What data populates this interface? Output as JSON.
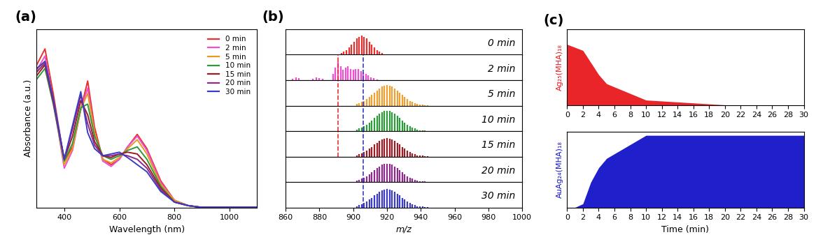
{
  "chart_data": [
    {
      "type": "line",
      "title": "(a)",
      "x_label": "Wavelength (nm)",
      "y_label": "Absorbance (a.u.)",
      "x": [
        300,
        330,
        360,
        400,
        430,
        460,
        485,
        510,
        540,
        570,
        600,
        630,
        665,
        700,
        750,
        800,
        850,
        900,
        1000,
        1100
      ],
      "series": [
        {
          "name": "0 min",
          "color": "#e8302e",
          "values": [
            0.8,
            0.89,
            0.64,
            0.26,
            0.34,
            0.55,
            0.71,
            0.45,
            0.27,
            0.24,
            0.27,
            0.34,
            0.41,
            0.33,
            0.15,
            0.04,
            0.01,
            0,
            0,
            0
          ]
        },
        {
          "name": "2 min",
          "color": "#ee4fd3",
          "values": [
            0.77,
            0.85,
            0.6,
            0.22,
            0.32,
            0.55,
            0.67,
            0.42,
            0.26,
            0.23,
            0.27,
            0.34,
            0.4,
            0.32,
            0.14,
            0.04,
            0.01,
            0,
            0,
            0
          ]
        },
        {
          "name": "5 min",
          "color": "#e69a1f",
          "values": [
            0.76,
            0.82,
            0.6,
            0.24,
            0.33,
            0.55,
            0.64,
            0.42,
            0.27,
            0.25,
            0.28,
            0.33,
            0.38,
            0.3,
            0.13,
            0.04,
            0.01,
            0,
            0,
            0
          ]
        },
        {
          "name": "10 min",
          "color": "#2e9b3a",
          "values": [
            0.72,
            0.78,
            0.58,
            0.26,
            0.36,
            0.56,
            0.58,
            0.4,
            0.29,
            0.27,
            0.29,
            0.32,
            0.34,
            0.27,
            0.12,
            0.03,
            0.01,
            0,
            0,
            0
          ]
        },
        {
          "name": "15 min",
          "color": "#9b1c24",
          "values": [
            0.74,
            0.8,
            0.59,
            0.27,
            0.4,
            0.6,
            0.52,
            0.37,
            0.29,
            0.28,
            0.3,
            0.31,
            0.3,
            0.24,
            0.11,
            0.03,
            0.01,
            0,
            0,
            0
          ]
        },
        {
          "name": "20 min",
          "color": "#8b2a8b",
          "values": [
            0.76,
            0.81,
            0.6,
            0.27,
            0.44,
            0.63,
            0.47,
            0.35,
            0.29,
            0.29,
            0.3,
            0.29,
            0.27,
            0.22,
            0.1,
            0.03,
            0.01,
            0,
            0,
            0
          ]
        },
        {
          "name": "30 min",
          "color": "#3b3bc4",
          "values": [
            0.78,
            0.82,
            0.61,
            0.27,
            0.46,
            0.65,
            0.42,
            0.33,
            0.29,
            0.3,
            0.31,
            0.28,
            0.24,
            0.2,
            0.09,
            0.03,
            0.01,
            0,
            0,
            0
          ]
        }
      ],
      "xlim": [
        300,
        1100
      ],
      "xticks": [
        400,
        600,
        800,
        1000
      ],
      "ylim": [
        0,
        1.0
      ],
      "tick_labels": "x",
      "legend": "upper right"
    },
    {
      "type": "stem",
      "title": "(b)",
      "x_label": "m/z",
      "series": [
        {
          "name": "0 min",
          "color": "#e8302e",
          "x": [
            893,
            894.5,
            896,
            897.5,
            899,
            900.5,
            902,
            903.5,
            905,
            906.5,
            908,
            909.5,
            911,
            912.5,
            914,
            915.5,
            917
          ],
          "values": [
            0.06,
            0.11,
            0.19,
            0.3,
            0.41,
            0.52,
            0.64,
            0.71,
            0.75,
            0.71,
            0.64,
            0.52,
            0.41,
            0.3,
            0.19,
            0.11,
            0.06
          ]
        },
        {
          "name": "2 min",
          "color": "#ee4fd3",
          "x": [
            864,
            866,
            868,
            876,
            878,
            880,
            882,
            888,
            889.5,
            891,
            892.5,
            894,
            895.5,
            897,
            898.5,
            900,
            901.5,
            903,
            904.5,
            906,
            907.5,
            909,
            910.5,
            912,
            914
          ],
          "values": [
            0.06,
            0.1,
            0.07,
            0.05,
            0.1,
            0.08,
            0.05,
            0.25,
            0.5,
            0.75,
            0.55,
            0.4,
            0.5,
            0.55,
            0.45,
            0.4,
            0.45,
            0.45,
            0.35,
            0.3,
            0.25,
            0.2,
            0.12,
            0.08,
            0.04
          ]
        },
        {
          "name": "5 min",
          "color": "#f0a030",
          "x": [
            902,
            903.5,
            905,
            906.5,
            908,
            909.5,
            911,
            912.5,
            914,
            915.5,
            917,
            918.5,
            920,
            921.5,
            923,
            924.5,
            926,
            927.5,
            929,
            930.5,
            932,
            933.5,
            935,
            936.5,
            938,
            939.5,
            941,
            942.5,
            944
          ],
          "values": [
            0.06,
            0.1,
            0.14,
            0.19,
            0.26,
            0.34,
            0.42,
            0.52,
            0.6,
            0.68,
            0.75,
            0.79,
            0.8,
            0.79,
            0.75,
            0.68,
            0.6,
            0.52,
            0.42,
            0.34,
            0.26,
            0.19,
            0.14,
            0.1,
            0.06,
            0.04,
            0.03,
            0.02,
            0.01
          ]
        },
        {
          "name": "10 min",
          "color": "#2e9b3a",
          "x": [
            902,
            903.5,
            905,
            906.5,
            908,
            909.5,
            911,
            912.5,
            914,
            915.5,
            917,
            918.5,
            920,
            921.5,
            923,
            924.5,
            926,
            927.5,
            929,
            930.5,
            932,
            933.5,
            935,
            936.5,
            938,
            939.5,
            941,
            942.5,
            944
          ],
          "values": [
            0.06,
            0.1,
            0.14,
            0.19,
            0.26,
            0.34,
            0.42,
            0.52,
            0.6,
            0.68,
            0.75,
            0.79,
            0.8,
            0.79,
            0.75,
            0.68,
            0.6,
            0.52,
            0.42,
            0.34,
            0.26,
            0.19,
            0.14,
            0.1,
            0.06,
            0.04,
            0.03,
            0.02,
            0.01
          ]
        },
        {
          "name": "15 min",
          "color": "#9b1c24",
          "x": [
            902,
            903.5,
            905,
            906.5,
            908,
            909.5,
            911,
            912.5,
            914,
            915.5,
            917,
            918.5,
            920,
            921.5,
            923,
            924.5,
            926,
            927.5,
            929,
            930.5,
            932,
            933.5,
            935,
            936.5,
            938,
            939.5,
            941,
            942.5,
            944
          ],
          "values": [
            0.05,
            0.09,
            0.13,
            0.17,
            0.23,
            0.31,
            0.38,
            0.47,
            0.54,
            0.61,
            0.68,
            0.71,
            0.72,
            0.71,
            0.68,
            0.61,
            0.54,
            0.47,
            0.38,
            0.31,
            0.23,
            0.17,
            0.13,
            0.09,
            0.05,
            0.04,
            0.03,
            0.02,
            0.01
          ]
        },
        {
          "name": "20 min",
          "color": "#8b2a8b",
          "x": [
            902,
            903.5,
            905,
            906.5,
            908,
            909.5,
            911,
            912.5,
            914,
            915.5,
            917,
            918.5,
            920,
            921.5,
            923,
            924.5,
            926,
            927.5,
            929,
            930.5,
            932,
            933.5,
            935,
            936.5,
            938,
            939.5,
            941,
            942.5,
            944
          ],
          "values": [
            0.05,
            0.09,
            0.13,
            0.17,
            0.23,
            0.31,
            0.38,
            0.47,
            0.54,
            0.61,
            0.68,
            0.71,
            0.72,
            0.71,
            0.68,
            0.61,
            0.54,
            0.47,
            0.38,
            0.31,
            0.23,
            0.17,
            0.13,
            0.09,
            0.05,
            0.04,
            0.03,
            0.02,
            0.01
          ]
        },
        {
          "name": "30 min",
          "color": "#3b3bc4",
          "x": [
            902,
            903.5,
            905,
            906.5,
            908,
            909.5,
            911,
            912.5,
            914,
            915.5,
            917,
            918.5,
            920,
            921.5,
            923,
            924.5,
            926,
            927.5,
            929,
            930.5,
            932,
            933.5,
            935,
            936.5,
            938,
            939.5,
            941,
            942.5,
            944
          ],
          "values": [
            0.05,
            0.09,
            0.13,
            0.17,
            0.23,
            0.31,
            0.38,
            0.47,
            0.54,
            0.61,
            0.68,
            0.71,
            0.72,
            0.71,
            0.68,
            0.61,
            0.54,
            0.47,
            0.38,
            0.31,
            0.23,
            0.17,
            0.13,
            0.09,
            0.05,
            0.04,
            0.03,
            0.02,
            0.01
          ]
        }
      ],
      "vlines": [
        {
          "x": 891,
          "color": "#e8302e",
          "line_style": "dashed",
          "from": "2 min",
          "to": "15 min"
        },
        {
          "x": 906,
          "color": "#3b3bc4",
          "line_style": "dashed",
          "from": "2 min",
          "to": "30 min"
        }
      ],
      "xlim": [
        860,
        1000
      ],
      "xticks": [
        860,
        880,
        900,
        920,
        940,
        960,
        980,
        1000
      ],
      "ylim": [
        0,
        1.0
      ],
      "tick_labels": "x"
    },
    {
      "type": "area",
      "title": "(c)",
      "y_label": "Ag₂₅(MHA)₁₈",
      "color": "#e8191e",
      "x": [
        0,
        2,
        4,
        5,
        10,
        20,
        30
      ],
      "values": [
        1.0,
        0.9,
        0.5,
        0.35,
        0.08,
        0,
        0
      ],
      "xlim": [
        0,
        30
      ],
      "xticks": [
        0,
        2,
        4,
        6,
        8,
        10,
        12,
        14,
        16,
        18,
        20,
        22,
        24,
        26,
        28,
        30
      ],
      "ylim": [
        0,
        1.25
      ],
      "tick_labels": "x"
    },
    {
      "type": "area",
      "y_label": "AuAg₂₄(MHA)₁₈",
      "x_label": "Time (min)",
      "color": "#1414c8",
      "x": [
        0,
        1,
        2,
        3,
        4,
        5,
        10,
        30
      ],
      "values": [
        0,
        0,
        0.05,
        0.35,
        0.55,
        0.68,
        1.0,
        1.0
      ],
      "xlim": [
        0,
        30
      ],
      "xticks": [
        0,
        2,
        4,
        6,
        8,
        10,
        12,
        14,
        16,
        18,
        20,
        22,
        24,
        26,
        28,
        30
      ],
      "ylim": [
        0,
        1.05
      ],
      "tick_labels": "x"
    }
  ]
}
